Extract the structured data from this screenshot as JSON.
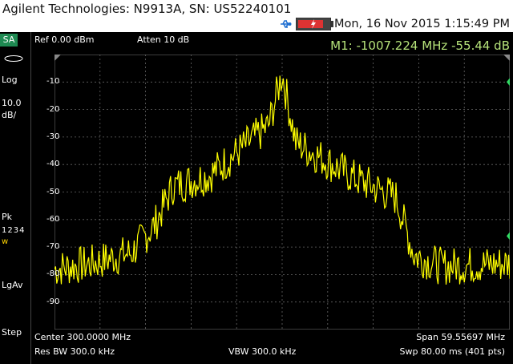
{
  "header": {
    "vendor_model": "Agilent Technologies: N9913A, SN: US52240101",
    "datetime": "Mon, 16 Nov 2015 1:15:49 PM",
    "battery_level": 0.85,
    "colors": {
      "background": "#ffffff",
      "battery": "#dd3333"
    },
    "icons": [
      "usb-icon",
      "battery-icon"
    ]
  },
  "sidebar": {
    "mode": "SA",
    "scale_type": "Log",
    "scale_value": "10.0",
    "scale_unit": "dB/",
    "detector": "Pk",
    "traces": "1234",
    "trace_mode": "w",
    "avg": "LgAv",
    "step": "Step"
  },
  "topbar": {
    "ref_level": "Ref 0.00 dBm",
    "atten": "Atten 10 dB",
    "marker": "M1:  -1007.224 MHz  -55.44 dB"
  },
  "bottom": {
    "center": "Center 300.0000 MHz",
    "span": "Span 59.55697 MHz",
    "rbw": "Res BW 300.0 kHz",
    "vbw": "VBW 300.0 kHz",
    "sweep": "Swp 80.00 ms (401 pts)"
  },
  "chart_data": {
    "type": "line",
    "xlabel": "",
    "ylabel": "",
    "ylim": [
      -100,
      0
    ],
    "yticks": [
      -10,
      -20,
      -30,
      -40,
      -50,
      -60,
      -70,
      -80,
      -90
    ],
    "grid": true,
    "trace_color": "#ffff00",
    "shape": [
      {
        "pos": 0.0,
        "level": -78
      },
      {
        "pos": 0.08,
        "level": -76
      },
      {
        "pos": 0.17,
        "level": -72
      },
      {
        "pos": 0.22,
        "level": -62
      },
      {
        "pos": 0.26,
        "level": -48
      },
      {
        "pos": 0.34,
        "level": -44
      },
      {
        "pos": 0.42,
        "level": -33
      },
      {
        "pos": 0.47,
        "level": -26
      },
      {
        "pos": 0.5,
        "level": -7
      },
      {
        "pos": 0.53,
        "level": -32
      },
      {
        "pos": 0.6,
        "level": -39
      },
      {
        "pos": 0.66,
        "level": -45
      },
      {
        "pos": 0.75,
        "level": -52
      },
      {
        "pos": 0.79,
        "level": -73
      },
      {
        "pos": 0.85,
        "level": -77
      },
      {
        "pos": 1.0,
        "level": -76
      }
    ],
    "noise_amplitude": 7
  }
}
